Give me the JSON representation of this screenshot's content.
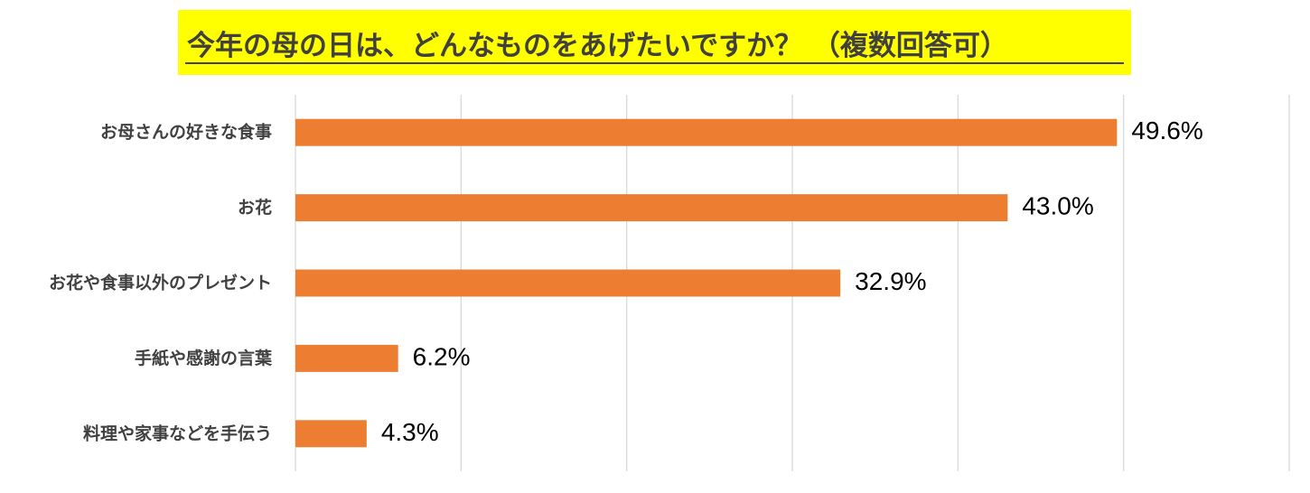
{
  "chart_data": {
    "type": "bar",
    "orientation": "horizontal",
    "title": "今年の母の日は、どんなものをあげたいですか？ （複数回答可）",
    "categories": [
      "お母さんの好きな食事",
      "お花",
      "お花や食事以外のプレゼント",
      "手紙や感謝の言葉",
      "料理や家事などを手伝う"
    ],
    "values": [
      49.6,
      43.0,
      32.9,
      6.2,
      4.3
    ],
    "value_labels": [
      "49.6%",
      "43.0%",
      "32.9%",
      "6.2%",
      "4.3%"
    ],
    "xlim": [
      0,
      60
    ],
    "grid": true,
    "bar_color": "#ed7d31",
    "title_background": "#ffff00"
  }
}
